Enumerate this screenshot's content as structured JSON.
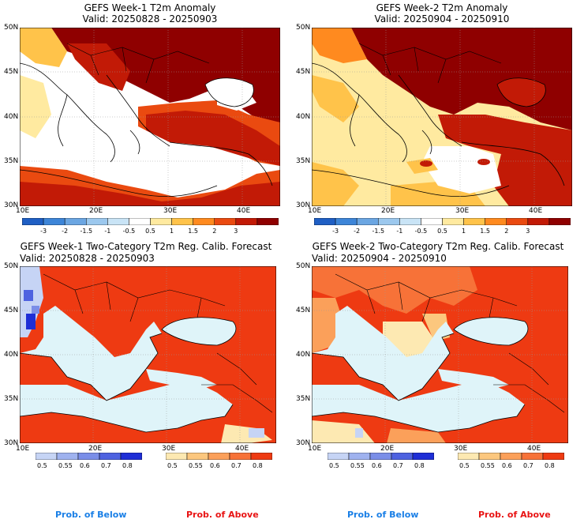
{
  "panels": [
    {
      "title": "GEFS Week-1 T2m Anomaly",
      "valid": "Valid: 20250828 - 20250903"
    },
    {
      "title": "GEFS Week-2 T2m Anomaly",
      "valid": "Valid: 20250904 - 20250910"
    },
    {
      "title": "GEFS Week-1 Two-Category T2m Reg. Calib. Forecast",
      "valid": "Valid: 20250828 - 20250903"
    },
    {
      "title": "GEFS Week-2 Two-Category T2m Reg. Calib. Forecast",
      "valid": "Valid: 20250904 - 20250910"
    }
  ],
  "lat_labels": [
    "50N",
    "45N",
    "40N",
    "35N",
    "30N"
  ],
  "lon_labels": [
    "10E",
    "20E",
    "30E",
    "40E"
  ],
  "anomaly_bar": {
    "ticks": [
      "-3",
      "-2",
      "-1.5",
      "-1",
      "-0.5",
      "0.5",
      "1",
      "1.5",
      "2",
      "3"
    ],
    "colors": [
      "#1f5fc4",
      "#3d85d8",
      "#6ba6e2",
      "#9cc8ee",
      "#c9e4f6",
      "#ffffff",
      "#ffeaa0",
      "#ffc34a",
      "#ff8a1f",
      "#ea4a10",
      "#c21a06",
      "#8f0000"
    ]
  },
  "prob_below_bar": {
    "ticks": [
      "0.5",
      "0.55",
      "0.6",
      "0.7",
      "0.8"
    ],
    "colors": [
      "#c6d4f5",
      "#9fb2ef",
      "#7a8ee8",
      "#4e62e0",
      "#1e2ed6"
    ]
  },
  "prob_above_bar": {
    "ticks": [
      "0.5",
      "0.55",
      "0.6",
      "0.7",
      "0.8"
    ],
    "colors": [
      "#fde9b2",
      "#fcc77e",
      "#fba05a",
      "#f77238",
      "#ee3a12"
    ]
  },
  "footer": {
    "below": "Prob. of Below",
    "above": "Prob. of Above"
  },
  "colors": {
    "below_text": "#1a7fe6",
    "above_text": "#e81414",
    "sea_light": "#dff4f9"
  }
}
